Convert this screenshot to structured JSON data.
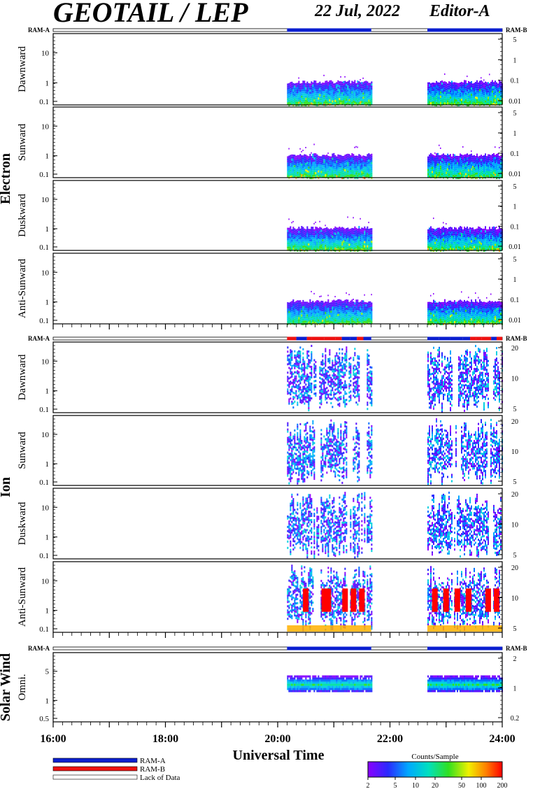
{
  "header": {
    "instrument": "GEOTAIL / LEP",
    "date": "22 Jul, 2022",
    "editor": "Editor-A"
  },
  "mode_labels": {
    "ram_a": "RAM-A",
    "ram_b": "RAM-B"
  },
  "groups": [
    {
      "name": "Electron",
      "panels": [
        "Dawnward",
        "Sunward",
        "Duskward",
        "Anti-Sunward"
      ],
      "left_ticks": [
        "10",
        "1",
        "0.1"
      ],
      "right_ticks": [
        [
          "5",
          "1",
          "0.1",
          "0.01"
        ],
        [
          "5",
          "1",
          "0.1",
          "0.01"
        ],
        [
          "5",
          "1",
          "0.1",
          "0.01"
        ],
        [
          "5",
          "1",
          "0.1",
          "0.01"
        ]
      ]
    },
    {
      "name": "Ion",
      "panels": [
        "Dawnward",
        "Sunward",
        "Duskward",
        "Anti-Sunward"
      ],
      "left_ticks": [
        "10",
        "1",
        "0.1"
      ],
      "right_ticks": [
        [
          "20",
          "10",
          "5"
        ],
        [
          "20",
          "10",
          "5"
        ],
        [
          "20",
          "10",
          "5"
        ],
        [
          "20",
          "10",
          "5"
        ]
      ]
    },
    {
      "name": "Solar Wind",
      "panels": [
        "Omni."
      ],
      "left_ticks": [
        "5",
        "1",
        "0.5"
      ],
      "right_ticks": [
        [
          "2",
          "1",
          "0.2"
        ]
      ]
    }
  ],
  "x_axis": {
    "label": "Universal Time",
    "ticks": [
      "16:00",
      "18:00",
      "20:00",
      "22:00",
      "24:00"
    ]
  },
  "legend": {
    "ram_a": "RAM-A",
    "ram_b": "RAM-B",
    "lack": "Lack of Data"
  },
  "colorbar": {
    "title": "Counts/Sample",
    "ticks": [
      "2",
      "5",
      "10",
      "20",
      "50",
      "100",
      "200"
    ]
  },
  "colors": {
    "ram_a": "#0b1fd0",
    "ram_b": "#ee1111"
  },
  "chart_data": {
    "type": "heatmap",
    "title": "GEOTAIL / LEP",
    "xlabel": "Universal Time",
    "x_range_hours": [
      16,
      24
    ],
    "data_intervals_ut": [
      [
        "20:10",
        "21:40"
      ],
      [
        "22:40",
        "24:00"
      ]
    ],
    "colorbar_range": [
      2,
      200
    ],
    "colorbar_scale": "log",
    "y_scale": "log",
    "ion_ram_pattern": "alternating RAM-A / RAM-B during data intervals",
    "electron_and_solar_wind_mode": "RAM-A"
  }
}
